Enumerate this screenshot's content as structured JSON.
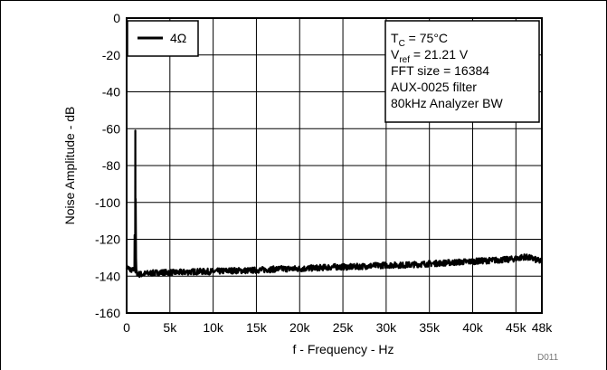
{
  "chart_data": {
    "type": "line",
    "title": "",
    "xlabel": "f - Frequency - Hz",
    "ylabel": "Noise Amplitude - dB",
    "xlim": [
      0,
      48000
    ],
    "ylim": [
      -160,
      0
    ],
    "grid": true,
    "x_ticks": [
      0,
      5000,
      10000,
      15000,
      20000,
      25000,
      30000,
      35000,
      40000,
      45000,
      48000
    ],
    "x_tick_labels": [
      "0",
      "5k",
      "10k",
      "15k",
      "20k",
      "25k",
      "30k",
      "35k",
      "40k",
      "45k",
      "48k"
    ],
    "y_ticks": [
      0,
      -20,
      -40,
      -60,
      -80,
      -100,
      -120,
      -140,
      -160
    ],
    "y_tick_labels": [
      "0",
      "-20",
      "-40",
      "-60",
      "-80",
      "-100",
      "-120",
      "-140",
      "-160"
    ],
    "legend_position": "top-left",
    "series": [
      {
        "name": "4Ω",
        "color": "#000000",
        "x": [
          0,
          300,
          600,
          900,
          1000,
          1100,
          1400,
          1800,
          2500,
          4000,
          6000,
          8000,
          10000,
          12000,
          14000,
          16000,
          18000,
          20000,
          22000,
          24000,
          26000,
          28000,
          30000,
          32000,
          34000,
          36000,
          38000,
          40000,
          42000,
          44000,
          45000,
          46000,
          46500,
          47000,
          47500,
          48000
        ],
        "y": [
          -135,
          -136,
          -137,
          -136,
          -61,
          -138,
          -139,
          -139,
          -138.5,
          -138,
          -138,
          -137.5,
          -137.5,
          -137,
          -137,
          -136.5,
          -136,
          -136,
          -135.5,
          -135,
          -135,
          -134.5,
          -134,
          -134,
          -133.5,
          -133,
          -132.5,
          -132,
          -131.5,
          -131,
          -130.5,
          -129.5,
          -130,
          -130.5,
          -131.5,
          -132
        ]
      }
    ],
    "annotation_box": {
      "lines": [
        {
          "main": "T",
          "sub": "C",
          "rest": " = 75°C"
        },
        {
          "main": "V",
          "sub": "ref",
          "rest": " = 21.21 V"
        },
        {
          "main": "FFT size = 16384",
          "sub": "",
          "rest": ""
        },
        {
          "main": "AUX-0025 filter",
          "sub": "",
          "rest": ""
        },
        {
          "main": "80kHz Analyzer BW",
          "sub": "",
          "rest": ""
        }
      ],
      "position": "top-right"
    },
    "figure_id": "D011"
  }
}
